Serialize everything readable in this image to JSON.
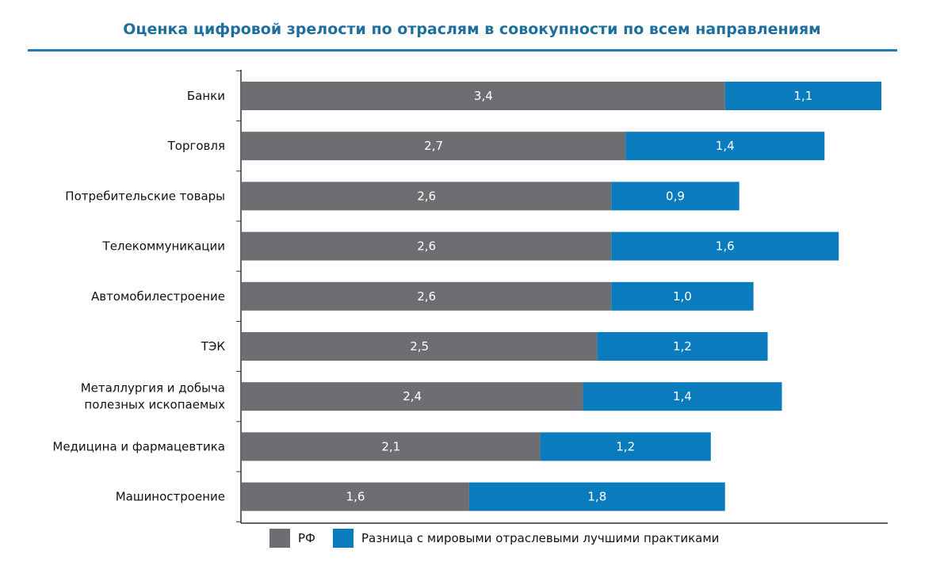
{
  "colors": {
    "rf": "#6d6e71",
    "gap": "#0a7bbd",
    "axis": "#333333",
    "title": "#1f6f9e"
  },
  "chart_data": {
    "type": "bar",
    "orientation": "horizontal",
    "stacked": true,
    "title": "Оценка цифровой зрелости по отраслям в совокупности по всем направлениям",
    "categories": [
      "Банки",
      "Торговля",
      "Потребительские товары",
      "Телекоммуникации",
      "Автомобилестроение",
      "ТЭК",
      "Металлургия и добыча полезных ископаемых",
      "Медицина и фармацевтика",
      "Машиностроение"
    ],
    "category_lines": [
      [
        "Банки"
      ],
      [
        "Торговля"
      ],
      [
        "Потребительские товары"
      ],
      [
        "Телекоммуникации"
      ],
      [
        "Автомобилестроение"
      ],
      [
        "ТЭК"
      ],
      [
        "Металлургия и добыча",
        "полезных ископаемых"
      ],
      [
        "Медицина и фармацевтика"
      ],
      [
        "Машиностроение"
      ]
    ],
    "series": [
      {
        "name": "РФ",
        "values": [
          3.4,
          2.7,
          2.6,
          2.6,
          2.6,
          2.5,
          2.4,
          2.1,
          1.6
        ],
        "labels": [
          "3,4",
          "2,7",
          "2,6",
          "2,6",
          "2,6",
          "2,5",
          "2,4",
          "2,1",
          "1,6"
        ]
      },
      {
        "name": "Разница с мировыми отраслевыми лучшими практиками",
        "values": [
          1.1,
          1.4,
          0.9,
          1.6,
          1.0,
          1.2,
          1.4,
          1.2,
          1.8
        ],
        "labels": [
          "1,1",
          "1,4",
          "0,9",
          "1,6",
          "1,0",
          "1,2",
          "1,4",
          "1,2",
          "1,8"
        ]
      }
    ],
    "xlim": [
      0,
      4.5
    ],
    "grid": false,
    "legend_position": "bottom"
  }
}
